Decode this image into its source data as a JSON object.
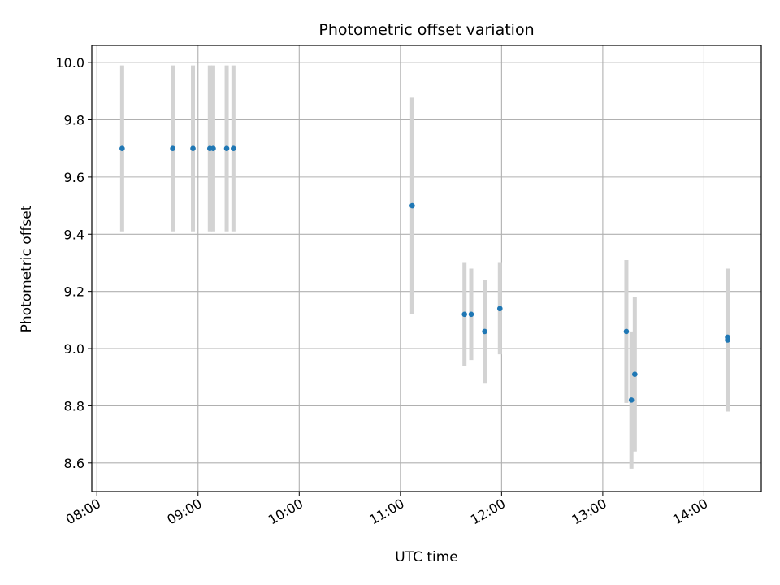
{
  "chart_data": {
    "type": "scatter",
    "title": "Photometric offset variation",
    "xlabel": "UTC time",
    "ylabel": "Photometric offset",
    "grid": true,
    "xlim": [
      "07:57",
      "14:34"
    ],
    "ylim": [
      8.5,
      10.06
    ],
    "xticks": [
      "08:00",
      "09:00",
      "10:00",
      "11:00",
      "12:00",
      "13:00",
      "14:00"
    ],
    "yticks": [
      "8.6",
      "8.8",
      "9.0",
      "9.2",
      "9.4",
      "9.6",
      "9.8",
      "10.0"
    ],
    "marker_color": "#1f77b4",
    "errorbar_color": "#d3d3d3",
    "points": [
      {
        "x": "08:15",
        "y": 9.7,
        "err": 0.29
      },
      {
        "x": "08:45",
        "y": 9.7,
        "err": 0.29
      },
      {
        "x": "08:57",
        "y": 9.7,
        "err": 0.29
      },
      {
        "x": "09:07",
        "y": 9.7,
        "err": 0.29
      },
      {
        "x": "09:09",
        "y": 9.7,
        "err": 0.29
      },
      {
        "x": "09:17",
        "y": 9.7,
        "err": 0.29
      },
      {
        "x": "09:21",
        "y": 9.7,
        "err": 0.29
      },
      {
        "x": "11:07",
        "y": 9.5,
        "err": 0.38
      },
      {
        "x": "11:38",
        "y": 9.12,
        "err": 0.18
      },
      {
        "x": "11:42",
        "y": 9.12,
        "err": 0.16
      },
      {
        "x": "11:50",
        "y": 9.06,
        "err": 0.18
      },
      {
        "x": "11:59",
        "y": 9.14,
        "err": 0.16
      },
      {
        "x": "13:14",
        "y": 9.06,
        "err": 0.25
      },
      {
        "x": "13:17",
        "y": 8.82,
        "err": 0.24
      },
      {
        "x": "13:19",
        "y": 8.91,
        "err": 0.27
      },
      {
        "x": "14:14",
        "y": 9.03,
        "err": 0.25
      },
      {
        "x": "14:14",
        "y": 9.04,
        "err": 0.24
      }
    ]
  }
}
